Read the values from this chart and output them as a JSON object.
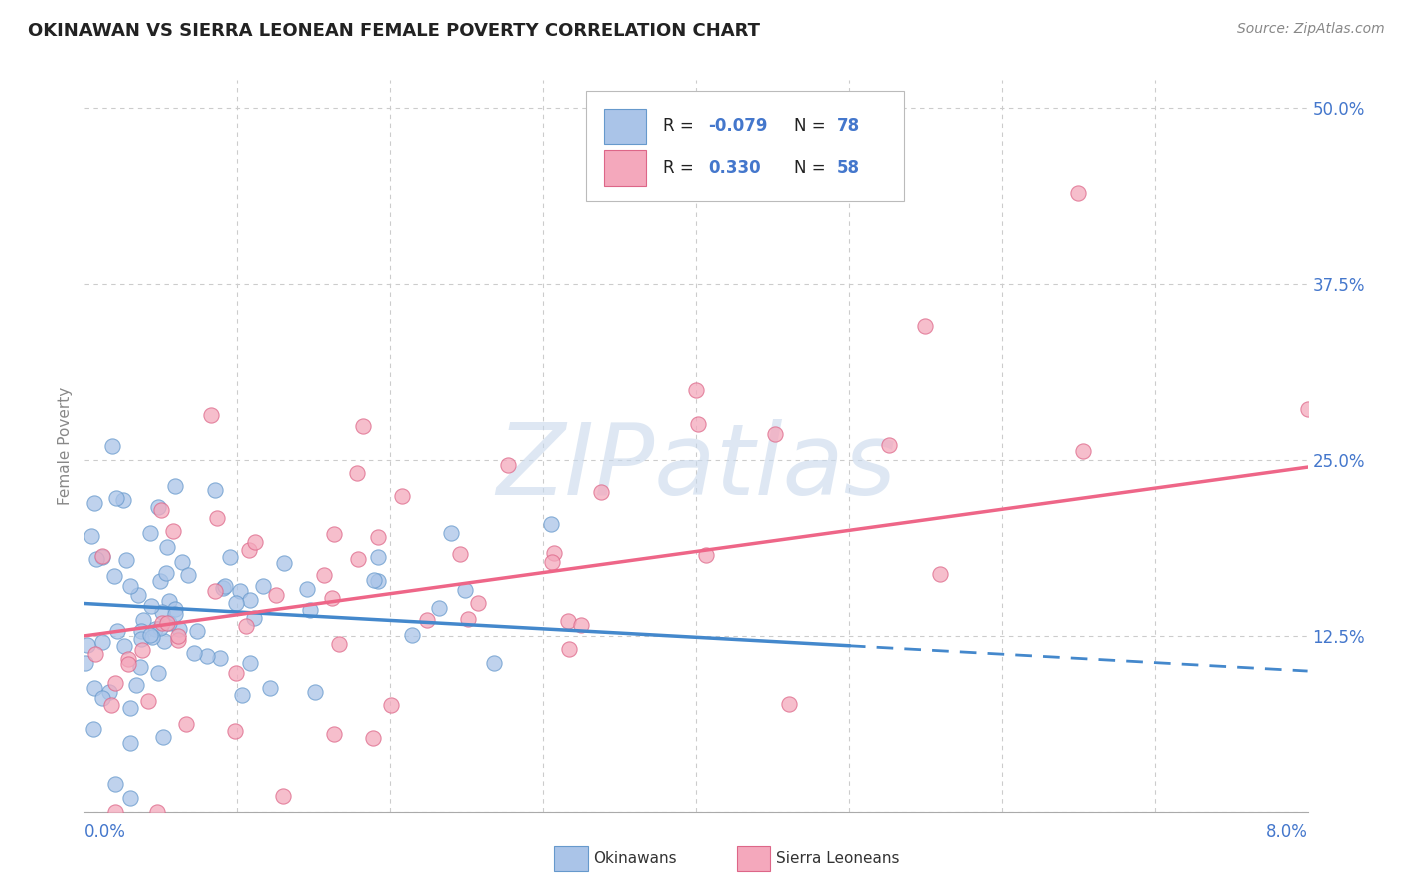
{
  "title": "OKINAWAN VS SIERRA LEONEAN FEMALE POVERTY CORRELATION CHART",
  "source": "Source: ZipAtlas.com",
  "ylabel": "Female Poverty",
  "okinawan_color": "#aac4e8",
  "okinawan_edge": "#6699cc",
  "sierra_color": "#f4a8bc",
  "sierra_edge": "#dd6688",
  "trendline_blue": "#4488cc",
  "trendline_pink": "#ee6688",
  "background_color": "#ffffff",
  "grid_color": "#cccccc",
  "title_color": "#222222",
  "source_color": "#888888",
  "axis_label_color": "#4477cc",
  "ylabel_color": "#888888",
  "legend_text_color": "#222222",
  "watermark_color": "#c8d8ec",
  "xmin": 0.0,
  "xmax": 0.08,
  "ymin": 0.0,
  "ymax": 0.52,
  "yticks": [
    0.0,
    0.125,
    0.25,
    0.375,
    0.5
  ],
  "n_okinawan": 78,
  "n_sierra": 58,
  "seed": 7,
  "trend1_x0": 0.0,
  "trend1_x1": 0.08,
  "trend1_y0": 0.148,
  "trend1_y1": 0.1,
  "trend1_dash_start": 0.05,
  "trend2_x0": 0.0,
  "trend2_x1": 0.08,
  "trend2_y0": 0.125,
  "trend2_y1": 0.245
}
